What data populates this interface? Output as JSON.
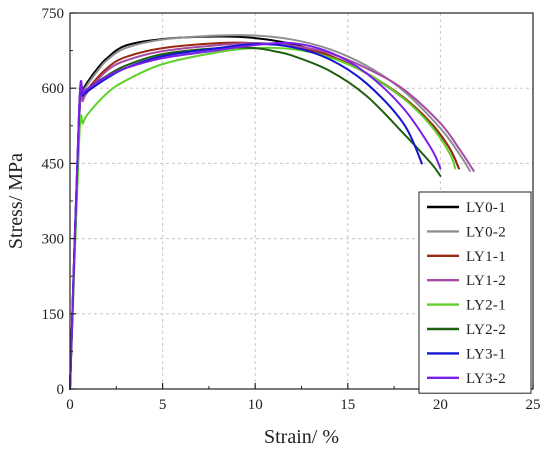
{
  "chart_data": {
    "type": "line",
    "xlabel": "Strain/ %",
    "ylabel": "Stress/ MPa",
    "xlim": [
      0,
      25
    ],
    "ylim": [
      0,
      750
    ],
    "xticks": [
      "0",
      "5",
      "10",
      "15",
      "20",
      "25"
    ],
    "yticks": [
      "0",
      "150",
      "300",
      "450",
      "600",
      "750"
    ],
    "grid": true,
    "legend_position": "right",
    "series": [
      {
        "name": "LY0-1",
        "color": "#000000",
        "x": [
          0,
          0.5,
          0.7,
          1,
          1.5,
          2,
          3,
          5,
          8,
          10,
          12,
          14,
          16,
          18,
          19.5,
          20.5,
          21
        ],
        "y": [
          0,
          550,
          595,
          615,
          640,
          660,
          685,
          698,
          703,
          700,
          688,
          665,
          630,
          580,
          530,
          480,
          440
        ]
      },
      {
        "name": "LY0-2",
        "color": "#909090",
        "x": [
          0,
          0.5,
          0.7,
          1,
          1.5,
          2,
          3,
          5,
          8,
          10,
          12,
          14,
          16,
          18,
          20,
          21,
          21.6
        ],
        "y": [
          0,
          545,
          590,
          610,
          635,
          656,
          680,
          697,
          705,
          705,
          697,
          678,
          645,
          595,
          520,
          470,
          435
        ]
      },
      {
        "name": "LY1-1",
        "color": "#9b2a14",
        "x": [
          0,
          0.5,
          0.7,
          1,
          2,
          3,
          5,
          8,
          10,
          12,
          14,
          16,
          18,
          19.5,
          20.5,
          21
        ],
        "y": [
          0,
          540,
          580,
          600,
          640,
          662,
          680,
          690,
          690,
          684,
          665,
          630,
          582,
          530,
          480,
          440
        ]
      },
      {
        "name": "LY1-2",
        "color": "#a64ca6",
        "x": [
          0,
          0.5,
          0.7,
          1,
          2,
          3,
          5,
          8,
          10,
          12,
          14,
          16,
          18,
          20,
          21,
          21.8
        ],
        "y": [
          0,
          540,
          575,
          595,
          635,
          655,
          674,
          686,
          690,
          685,
          670,
          640,
          598,
          530,
          480,
          435
        ]
      },
      {
        "name": "LY2-1",
        "color": "#5fd12a",
        "x": [
          0,
          0.5,
          0.7,
          1,
          2,
          3,
          5,
          8,
          10,
          12,
          14,
          16,
          18,
          19.5,
          20.5,
          20.8
        ],
        "y": [
          0,
          500,
          530,
          550,
          590,
          615,
          648,
          672,
          680,
          678,
          662,
          630,
          580,
          525,
          470,
          440
        ]
      },
      {
        "name": "LY2-2",
        "color": "#1f5f12",
        "x": [
          0,
          0.5,
          0.7,
          1,
          2,
          3,
          5,
          8,
          10,
          11,
          12,
          14,
          16,
          18,
          19.5,
          20
        ],
        "y": [
          0,
          560,
          590,
          600,
          625,
          645,
          668,
          680,
          680,
          674,
          665,
          635,
          585,
          510,
          450,
          425
        ]
      },
      {
        "name": "LY3-1",
        "color": "#1414d2",
        "x": [
          0,
          0.5,
          0.7,
          1,
          2,
          3,
          5,
          8,
          10,
          12,
          14,
          16,
          18,
          19
        ],
        "y": [
          0,
          560,
          585,
          595,
          620,
          640,
          664,
          680,
          688,
          682,
          658,
          610,
          530,
          450
        ]
      },
      {
        "name": "LY3-2",
        "color": "#7a1fe8",
        "x": [
          0,
          0.5,
          0.7,
          1,
          2,
          3,
          5,
          8,
          10,
          12,
          14,
          16,
          18,
          19.5,
          20
        ],
        "y": [
          0,
          565,
          590,
          600,
          623,
          640,
          660,
          676,
          686,
          690,
          672,
          630,
          560,
          480,
          440
        ]
      }
    ]
  }
}
